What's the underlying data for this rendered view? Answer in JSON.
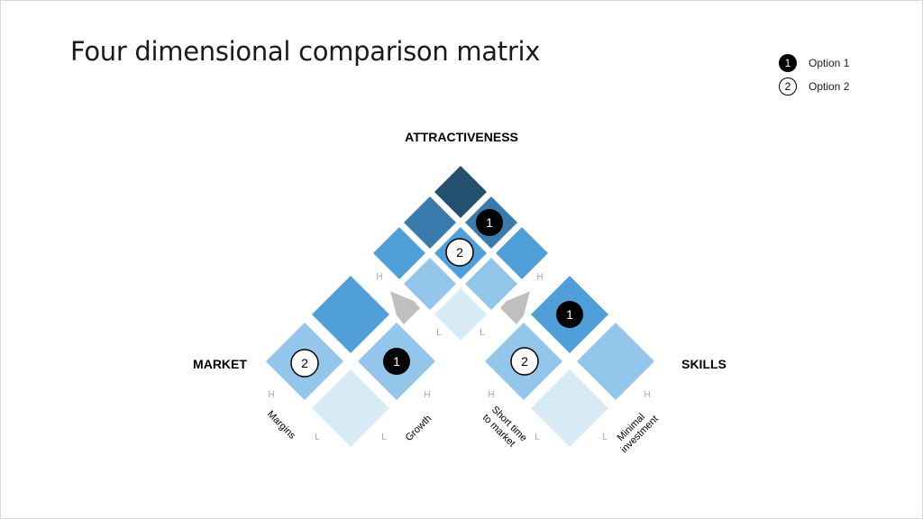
{
  "title": "Four dimensional comparison matrix",
  "legend": [
    {
      "marker": "1",
      "label": "Option 1",
      "style": "filled"
    },
    {
      "marker": "2",
      "label": "Option 2",
      "style": "open"
    }
  ],
  "axis_titles": {
    "attractiveness": "ATTRACTIVENESS",
    "market": "MARKET",
    "skills": "SKILLS"
  },
  "scale": {
    "high": "H",
    "low": "L"
  },
  "dimensions": {
    "margins": "Margins",
    "growth": "Growth",
    "short_time_line1": "Short time",
    "short_time_line2": "to market",
    "minimal_line1": "Minimal",
    "minimal_line2": "investment"
  },
  "markers": {
    "one": "1",
    "two": "2"
  },
  "colors": {
    "darkest": "#24506f",
    "dark": "#3b7aad",
    "medium": "#519fd8",
    "light": "#93c6ea",
    "lightest": "#d9eaf7",
    "arrow": "#bfbfbf",
    "scale_text": "#a6a6a6"
  }
}
